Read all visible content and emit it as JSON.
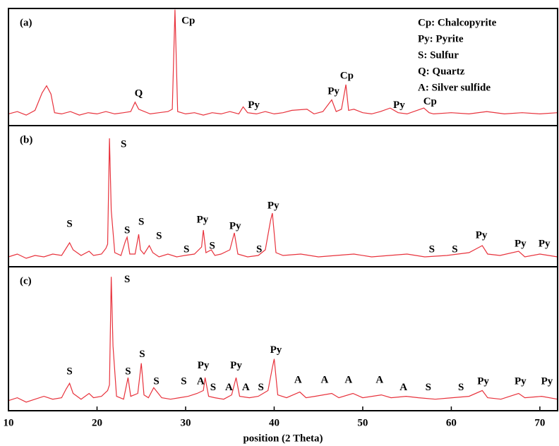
{
  "chart_data": [
    {
      "type": "line",
      "panel_label": "(a)",
      "legend": [
        "Cp: Chalcopyrite",
        "Py: Pyrite",
        "S: Sulfur",
        "Q: Quartz",
        "A: Silver sulfide"
      ],
      "xlim": [
        10,
        72
      ],
      "ylim": [
        0,
        100
      ],
      "x": [
        10,
        11,
        12,
        13,
        13.8,
        14.3,
        14.8,
        15.2,
        16,
        17,
        18,
        19,
        20,
        21,
        22,
        23,
        23.8,
        24.3,
        24.7,
        26,
        27,
        28,
        28.5,
        28.8,
        29.1,
        30,
        31,
        32,
        33,
        34,
        35,
        36,
        36.5,
        37,
        38,
        39,
        40,
        41,
        42,
        43.7,
        44.5,
        45.5,
        46.5,
        47,
        47.6,
        48.1,
        48.4,
        49,
        50,
        51,
        52,
        53.1,
        54,
        55,
        56.9,
        57.5,
        58,
        60,
        62,
        64,
        66,
        68,
        70,
        72
      ],
      "series": [
        {
          "color": "#e8323c",
          "values": [
            10,
            12,
            9,
            13,
            28,
            34,
            27,
            11,
            10,
            12,
            9,
            11,
            10,
            12,
            10,
            11,
            12,
            20,
            14,
            10,
            11,
            12,
            14,
            99,
            12,
            10,
            11,
            9,
            11,
            10,
            12,
            10,
            16,
            11,
            10,
            12,
            10,
            11,
            13,
            14,
            10,
            12,
            22,
            12,
            14,
            35,
            13,
            14,
            11,
            10,
            12,
            15,
            11,
            10,
            15,
            11,
            10,
            11,
            10,
            12,
            10,
            11,
            10,
            11
          ]
        }
      ],
      "annotations": [
        {
          "text": "Cp",
          "x": 30.3,
          "y": 89
        },
        {
          "text": "Q",
          "x": 24.7,
          "y": 27
        },
        {
          "text": "Py",
          "x": 37.7,
          "y": 17
        },
        {
          "text": "Py",
          "x": 46.7,
          "y": 29
        },
        {
          "text": "Cp",
          "x": 48.2,
          "y": 42
        },
        {
          "text": "Py",
          "x": 54.1,
          "y": 17
        },
        {
          "text": "Cp",
          "x": 57.6,
          "y": 20
        }
      ]
    },
    {
      "type": "line",
      "panel_label": "(b)",
      "xlim": [
        10,
        72
      ],
      "ylim": [
        0,
        100
      ],
      "x": [
        10,
        11,
        12,
        13,
        14,
        15,
        16,
        16.6,
        16.9,
        17.3,
        18.2,
        19.1,
        19.6,
        20.5,
        21,
        21.2,
        21.4,
        21.6,
        22,
        22.7,
        23.2,
        23.4,
        23.7,
        24.3,
        24.7,
        24.9,
        25.3,
        25.9,
        26.3,
        27,
        28,
        29,
        29.9,
        31,
        31.8,
        32,
        32.3,
        32.9,
        33.3,
        34,
        35,
        35.5,
        35.9,
        37,
        38.2,
        39,
        39.6,
        39.8,
        40.2,
        41,
        43,
        45,
        47,
        49,
        51,
        53,
        55,
        57,
        59.5,
        62,
        63.5,
        64.1,
        65.5,
        67.6,
        68.3,
        70,
        72
      ],
      "series": [
        {
          "color": "#e8323c",
          "values": [
            7,
            9,
            6,
            8,
            7,
            9,
            8,
            14,
            17,
            12,
            8,
            11,
            8,
            9,
            13,
            16,
            91,
            40,
            10,
            8,
            18,
            21,
            9,
            9,
            23,
            12,
            9,
            15,
            10,
            7,
            9,
            7,
            8,
            9,
            14,
            26,
            10,
            12,
            8,
            9,
            12,
            24,
            9,
            7,
            8,
            12,
            33,
            38,
            10,
            8,
            9,
            7,
            8,
            9,
            7,
            8,
            9,
            7,
            8,
            10,
            15,
            9,
            8,
            11,
            7,
            9,
            7
          ]
        }
      ],
      "annotations": [
        {
          "text": "S",
          "x": 16.9,
          "y": 30
        },
        {
          "text": "S",
          "x": 23,
          "y": 86.5
        },
        {
          "text": "S",
          "x": 23.4,
          "y": 25.5
        },
        {
          "text": "S",
          "x": 25,
          "y": 31.5
        },
        {
          "text": "S",
          "x": 27,
          "y": 21.5
        },
        {
          "text": "S",
          "x": 30.1,
          "y": 12
        },
        {
          "text": "Py",
          "x": 31.9,
          "y": 33
        },
        {
          "text": "S",
          "x": 33,
          "y": 14.5
        },
        {
          "text": "Py",
          "x": 35.6,
          "y": 28.5
        },
        {
          "text": "S",
          "x": 38.3,
          "y": 12
        },
        {
          "text": "Py",
          "x": 39.9,
          "y": 43
        },
        {
          "text": "S",
          "x": 57.8,
          "y": 12
        },
        {
          "text": "S",
          "x": 60.4,
          "y": 12
        },
        {
          "text": "Py",
          "x": 63.4,
          "y": 22
        },
        {
          "text": "Py",
          "x": 67.8,
          "y": 16
        },
        {
          "text": "Py",
          "x": 70.5,
          "y": 16
        }
      ]
    },
    {
      "type": "line",
      "panel_label": "(c)",
      "xlabel": "position (2 Theta)",
      "xlim": [
        10,
        72
      ],
      "ylim": [
        0,
        100
      ],
      "xticks": [
        10,
        20,
        30,
        40,
        50,
        60,
        70
      ],
      "x": [
        10,
        11,
        12,
        13,
        14,
        15,
        16,
        16.5,
        16.9,
        17.3,
        18.2,
        19.1,
        19.6,
        20.5,
        21.2,
        21.4,
        21.6,
        21.8,
        22.2,
        23,
        23.3,
        23.5,
        23.8,
        24.6,
        25,
        25.3,
        25.8,
        26.4,
        27.3,
        28.3,
        29.3,
        30.3,
        31.3,
        32,
        32.2,
        32.6,
        33.3,
        34.3,
        35.2,
        35.7,
        36.1,
        37.2,
        38.2,
        39.3,
        39.8,
        40,
        40.4,
        41.4,
        42.9,
        43.6,
        44.6,
        46.5,
        47.3,
        48.9,
        50,
        52.1,
        53.2,
        54.9,
        56.3,
        58.2,
        60.1,
        62,
        63.5,
        64.1,
        65.6,
        67.6,
        68.3,
        70.2,
        72
      ],
      "series": [
        {
          "color": "#e8323c",
          "values": [
            7,
            9,
            6,
            8,
            10,
            8,
            9,
            15,
            19,
            12,
            8,
            12,
            9,
            10,
            14,
            18,
            93,
            45,
            10,
            8,
            17,
            23,
            10,
            12,
            33,
            11,
            9,
            16,
            9,
            8,
            9,
            10,
            12,
            14,
            23,
            10,
            9,
            8,
            11,
            23,
            10,
            9,
            10,
            14,
            30,
            36,
            11,
            9,
            13,
            9,
            10,
            12,
            9,
            12,
            9,
            11,
            9,
            10,
            9,
            8,
            9,
            10,
            14,
            9,
            8,
            12,
            9,
            10,
            8
          ]
        }
      ],
      "annotations": [
        {
          "text": "S",
          "x": 16.9,
          "y": 27
        },
        {
          "text": "S",
          "x": 23.4,
          "y": 91
        },
        {
          "text": "S",
          "x": 23.5,
          "y": 27
        },
        {
          "text": "S",
          "x": 25.1,
          "y": 39
        },
        {
          "text": "S",
          "x": 26.7,
          "y": 20
        },
        {
          "text": "S",
          "x": 29.8,
          "y": 20
        },
        {
          "text": "A",
          "x": 31.7,
          "y": 20
        },
        {
          "text": "Py",
          "x": 32,
          "y": 31
        },
        {
          "text": "S",
          "x": 33.1,
          "y": 16
        },
        {
          "text": "A",
          "x": 34.9,
          "y": 16
        },
        {
          "text": "Py",
          "x": 35.7,
          "y": 31
        },
        {
          "text": "A",
          "x": 36.8,
          "y": 16
        },
        {
          "text": "S",
          "x": 38.5,
          "y": 16
        },
        {
          "text": "Py",
          "x": 40.2,
          "y": 42
        },
        {
          "text": "A",
          "x": 42.7,
          "y": 21
        },
        {
          "text": "A",
          "x": 45.7,
          "y": 21
        },
        {
          "text": "A",
          "x": 48.4,
          "y": 21
        },
        {
          "text": "A",
          "x": 51.9,
          "y": 21
        },
        {
          "text": "A",
          "x": 54.6,
          "y": 16
        },
        {
          "text": "S",
          "x": 57.4,
          "y": 16
        },
        {
          "text": "S",
          "x": 61.1,
          "y": 16
        },
        {
          "text": "Py",
          "x": 63.6,
          "y": 20
        },
        {
          "text": "Py",
          "x": 67.8,
          "y": 20
        },
        {
          "text": "Py",
          "x": 70.8,
          "y": 20
        }
      ]
    }
  ]
}
